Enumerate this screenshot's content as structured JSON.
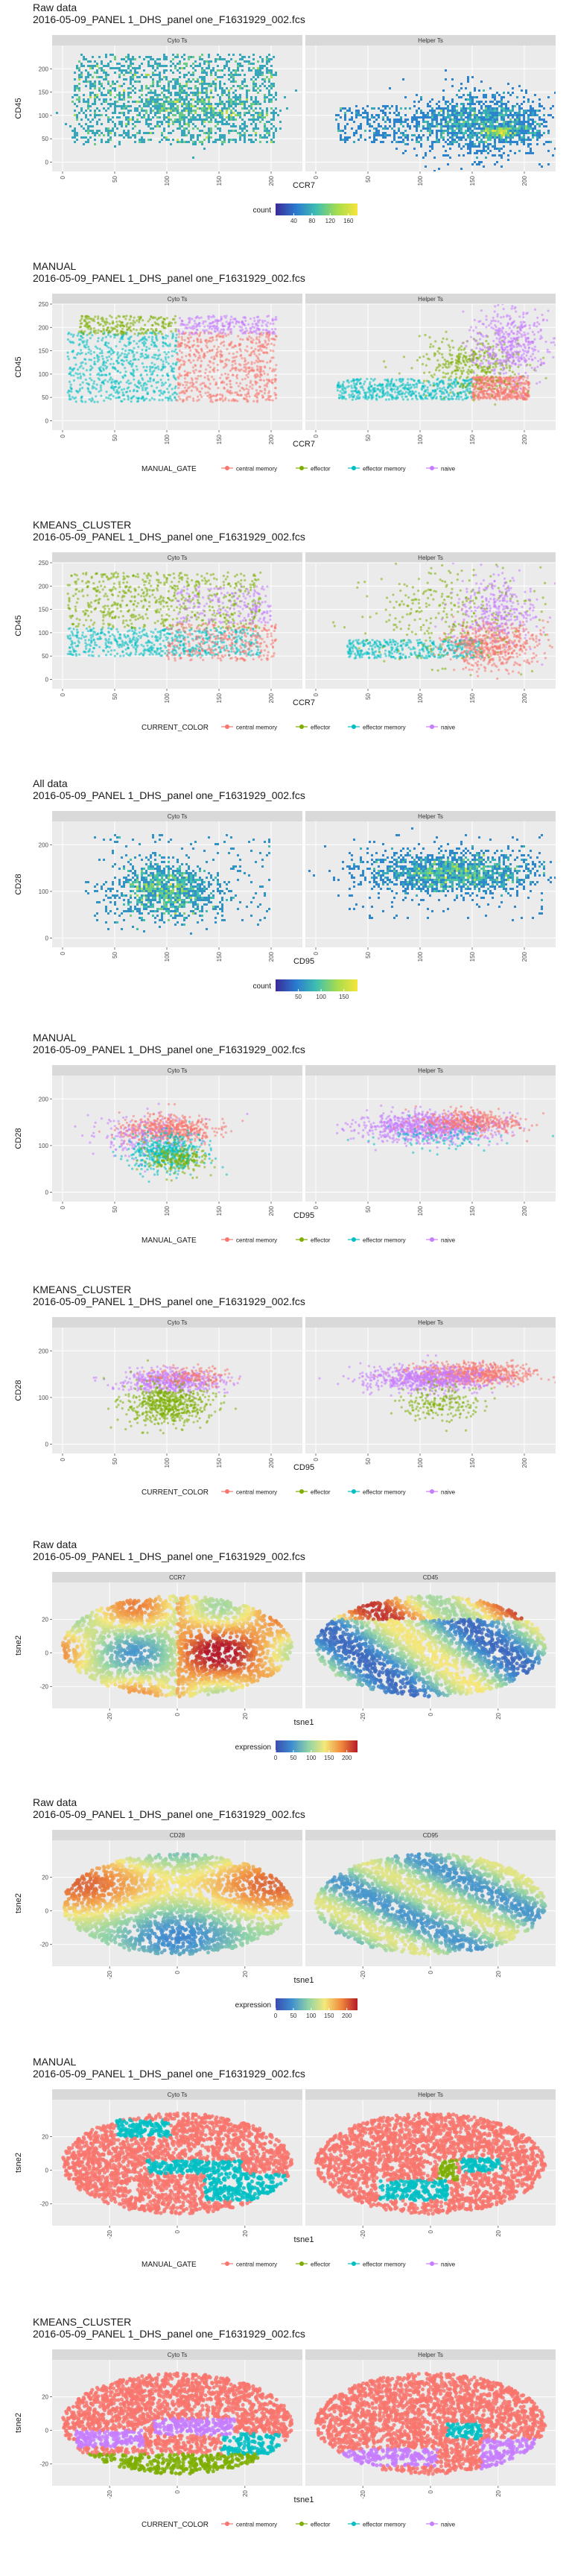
{
  "colors": {
    "central memory": "#f8766d",
    "effector": "#7cae00",
    "effector memory": "#00bfc4",
    "naive": "#c77cff",
    "count_gradient": [
      "#3b2a98",
      "#2a7bd0",
      "#3fbfb0",
      "#a6dc4e",
      "#f5e53b"
    ],
    "expression_gradient": [
      "#3a4cb0",
      "#3f8fd0",
      "#8fd3a6",
      "#f4e87a",
      "#f08a3c",
      "#b51a2a"
    ],
    "panel_bg": "#ebebeb",
    "strip_bg": "#d9d9d9"
  },
  "chart_data": [
    {
      "type": "heatmap",
      "title": "Raw data",
      "subtitle": "2016-05-09_PANEL 1_DHS_panel one_F1631929_002.fcs",
      "xlabel": "CCR7",
      "ylabel": "CD45",
      "facets": [
        "Cyto Ts",
        "Helper Ts"
      ],
      "xlim": [
        -10,
        230
      ],
      "ylim": [
        -20,
        250
      ],
      "xticks": [
        0,
        50,
        100,
        150,
        200
      ],
      "yticks": [
        0,
        50,
        100,
        150,
        200
      ],
      "legend": {
        "title": "count",
        "ticks": [
          40,
          80,
          120,
          160
        ],
        "range": [
          0,
          180
        ]
      }
    },
    {
      "type": "scatter",
      "title": "MANUAL",
      "subtitle": "2016-05-09_PANEL 1_DHS_panel one_F1631929_002.fcs",
      "xlabel": "CCR7",
      "ylabel": "CD45",
      "facets": [
        "Cyto Ts",
        "Helper Ts"
      ],
      "xlim": [
        -10,
        230
      ],
      "ylim": [
        -20,
        250
      ],
      "xticks": [
        0,
        50,
        100,
        150,
        200
      ],
      "yticks": [
        0,
        50,
        100,
        150,
        200,
        250
      ],
      "legend": {
        "title": "MANUAL_GATE",
        "entries": [
          "central memory",
          "effector",
          "effector memory",
          "naive"
        ]
      }
    },
    {
      "type": "scatter",
      "title": "KMEANS_CLUSTER",
      "subtitle": "2016-05-09_PANEL 1_DHS_panel one_F1631929_002.fcs",
      "xlabel": "CCR7",
      "ylabel": "CD45",
      "facets": [
        "Cyto Ts",
        "Helper Ts"
      ],
      "xlim": [
        -10,
        230
      ],
      "ylim": [
        -20,
        250
      ],
      "xticks": [
        0,
        50,
        100,
        150,
        200
      ],
      "yticks": [
        0,
        50,
        100,
        150,
        200,
        250
      ],
      "legend": {
        "title": "CURRENT_COLOR",
        "entries": [
          "central memory",
          "effector",
          "effector memory",
          "naive"
        ]
      }
    },
    {
      "type": "heatmap",
      "title": "All data",
      "subtitle": "2016-05-09_PANEL 1_DHS_panel one_F1631929_002.fcs",
      "xlabel": "CD95",
      "ylabel": "CD28",
      "facets": [
        "Cyto Ts",
        "Helper Ts"
      ],
      "xlim": [
        -10,
        230
      ],
      "ylim": [
        -20,
        250
      ],
      "xticks": [
        0,
        50,
        100,
        150,
        200
      ],
      "yticks": [
        0,
        100,
        200
      ],
      "legend": {
        "title": "count",
        "ticks": [
          50,
          100,
          150
        ],
        "range": [
          0,
          180
        ]
      }
    },
    {
      "type": "scatter",
      "title": "MANUAL",
      "subtitle": "2016-05-09_PANEL 1_DHS_panel one_F1631929_002.fcs",
      "xlabel": "CD95",
      "ylabel": "CD28",
      "facets": [
        "Cyto Ts",
        "Helper Ts"
      ],
      "xlim": [
        -10,
        230
      ],
      "ylim": [
        -20,
        250
      ],
      "xticks": [
        0,
        50,
        100,
        150,
        200
      ],
      "yticks": [
        0,
        100,
        200
      ],
      "legend": {
        "title": "MANUAL_GATE",
        "entries": [
          "central memory",
          "effector",
          "effector memory",
          "naive"
        ]
      }
    },
    {
      "type": "scatter",
      "title": "KMEANS_CLUSTER",
      "subtitle": "2016-05-09_PANEL 1_DHS_panel one_F1631929_002.fcs",
      "xlabel": "CD95",
      "ylabel": "CD28",
      "facets": [
        "Cyto Ts",
        "Helper Ts"
      ],
      "xlim": [
        -10,
        230
      ],
      "ylim": [
        -20,
        250
      ],
      "xticks": [
        0,
        50,
        100,
        150,
        200
      ],
      "yticks": [
        0,
        100,
        200
      ],
      "legend": {
        "title": "CURRENT_COLOR",
        "entries": [
          "central memory",
          "effector",
          "effector memory",
          "naive"
        ]
      }
    },
    {
      "type": "scatter",
      "title": "Raw data",
      "subtitle": "2016-05-09_PANEL 1_DHS_panel one_F1631929_002.fcs",
      "xlabel": "tsne1",
      "ylabel": "tsne2",
      "facets": [
        "CCR7",
        "CD45"
      ],
      "xlim": [
        -37,
        37
      ],
      "ylim": [
        -33,
        42
      ],
      "xticks": [
        -20,
        0,
        20
      ],
      "yticks": [
        -20,
        0,
        20
      ],
      "legend": {
        "title": "expression",
        "ticks": [
          0,
          50,
          100,
          150,
          200
        ],
        "range": [
          0,
          230
        ]
      }
    },
    {
      "type": "scatter",
      "title": "Raw data",
      "subtitle": "2016-05-09_PANEL 1_DHS_panel one_F1631929_002.fcs",
      "xlabel": "tsne1",
      "ylabel": "tsne2",
      "facets": [
        "CD28",
        "CD95"
      ],
      "xlim": [
        -37,
        37
      ],
      "ylim": [
        -33,
        42
      ],
      "xticks": [
        -20,
        0,
        20
      ],
      "yticks": [
        -20,
        0,
        20
      ],
      "legend": {
        "title": "expression",
        "ticks": [
          0,
          50,
          100,
          150,
          200
        ],
        "range": [
          0,
          230
        ]
      }
    },
    {
      "type": "scatter",
      "title": "MANUAL",
      "subtitle": "2016-05-09_PANEL 1_DHS_panel one_F1631929_002.fcs",
      "xlabel": "tsne1",
      "ylabel": "tsne2",
      "facets": [
        "Cyto Ts",
        "Helper Ts"
      ],
      "xlim": [
        -37,
        37
      ],
      "ylim": [
        -33,
        42
      ],
      "xticks": [
        -20,
        0,
        20
      ],
      "yticks": [
        -20,
        0,
        20
      ],
      "legend": {
        "title": "MANUAL_GATE",
        "entries": [
          "central memory",
          "effector",
          "effector memory",
          "naive"
        ]
      }
    },
    {
      "type": "scatter",
      "title": "KMEANS_CLUSTER",
      "subtitle": "2016-05-09_PANEL 1_DHS_panel one_F1631929_002.fcs",
      "xlabel": "tsne1",
      "ylabel": "tsne2",
      "facets": [
        "Cyto Ts",
        "Helper Ts"
      ],
      "xlim": [
        -37,
        37
      ],
      "ylim": [
        -33,
        42
      ],
      "xticks": [
        -20,
        0,
        20
      ],
      "yticks": [
        -20,
        0,
        20
      ],
      "legend": {
        "title": "CURRENT_COLOR",
        "entries": [
          "central memory",
          "effector",
          "effector memory",
          "naive"
        ]
      }
    }
  ]
}
